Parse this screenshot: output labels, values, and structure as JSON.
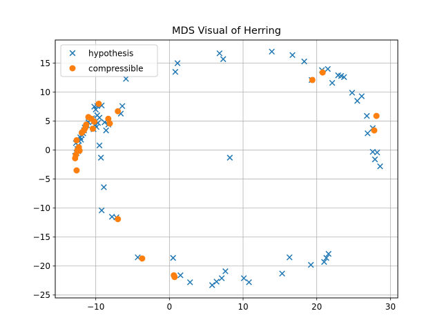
{
  "chart_data": {
    "type": "scatter",
    "title": "MDS Visual of Herring",
    "xlabel": "",
    "ylabel": "",
    "xlim": [
      -15.5,
      31
    ],
    "ylim": [
      -25.5,
      19
    ],
    "xticks": [
      -10,
      0,
      10,
      20,
      30
    ],
    "yticks": [
      -25,
      -20,
      -15,
      -10,
      -5,
      0,
      5,
      10,
      15
    ],
    "grid": true,
    "legend_position": "top-left",
    "series": [
      {
        "name": "hypothesis",
        "marker": "x",
        "color": "#1f77b4",
        "points": [
          [
            -12.8,
            -1.0
          ],
          [
            -12.6,
            -0.5
          ],
          [
            -12.5,
            0.2
          ],
          [
            -12.4,
            0.8
          ],
          [
            -12.7,
            1.2
          ],
          [
            -12.3,
            1.6
          ],
          [
            -12.1,
            2.2
          ],
          [
            -11.9,
            2.6
          ],
          [
            -11.8,
            3.0
          ],
          [
            -11.6,
            3.4
          ],
          [
            -11.5,
            3.9
          ],
          [
            -11.2,
            4.3
          ],
          [
            -11.0,
            4.8
          ],
          [
            -10.8,
            5.2
          ],
          [
            -10.5,
            5.5
          ],
          [
            -10.3,
            5.0
          ],
          [
            -10.1,
            4.4
          ],
          [
            -9.9,
            4.0
          ],
          [
            -10.3,
            3.6
          ],
          [
            -9.7,
            4.7
          ],
          [
            -9.5,
            5.6
          ],
          [
            -9.8,
            6.0
          ],
          [
            -10.0,
            7.0
          ],
          [
            -10.2,
            7.5
          ],
          [
            -9.8,
            7.6
          ],
          [
            -9.2,
            7.7
          ],
          [
            -8.8,
            4.8
          ],
          [
            -8.6,
            3.4
          ],
          [
            -8.3,
            4.4
          ],
          [
            -12.4,
            -0.2
          ],
          [
            -12.0,
            1.8
          ],
          [
            -11.7,
            2.9
          ],
          [
            -9.5,
            0.8
          ],
          [
            -9.3,
            -1.3
          ],
          [
            -8.9,
            -6.4
          ],
          [
            -9.2,
            -10.4
          ],
          [
            -7.8,
            -11.5
          ],
          [
            -7.2,
            -11.6
          ],
          [
            -6.6,
            6.3
          ],
          [
            -6.4,
            7.6
          ],
          [
            -5.9,
            12.3
          ],
          [
            -4.3,
            -18.5
          ],
          [
            0.5,
            -18.6
          ],
          [
            0.8,
            13.5
          ],
          [
            1.1,
            15.0
          ],
          [
            1.5,
            -21.6
          ],
          [
            2.8,
            -22.8
          ],
          [
            5.8,
            -23.3
          ],
          [
            6.4,
            -22.7
          ],
          [
            6.8,
            16.7
          ],
          [
            7.1,
            -22.1
          ],
          [
            7.3,
            15.7
          ],
          [
            7.6,
            -20.9
          ],
          [
            8.2,
            -1.3
          ],
          [
            10.1,
            -22.1
          ],
          [
            10.8,
            -22.8
          ],
          [
            13.9,
            17.0
          ],
          [
            15.3,
            -21.3
          ],
          [
            16.3,
            -18.5
          ],
          [
            16.7,
            16.4
          ],
          [
            18.3,
            15.3
          ],
          [
            19.2,
            -19.8
          ],
          [
            19.3,
            12.1
          ],
          [
            20.7,
            13.8
          ],
          [
            21.0,
            -19.3
          ],
          [
            21.3,
            -18.6
          ],
          [
            21.6,
            -17.9
          ],
          [
            21.5,
            14.0
          ],
          [
            22.1,
            11.6
          ],
          [
            22.9,
            12.9
          ],
          [
            23.3,
            12.8
          ],
          [
            23.7,
            12.6
          ],
          [
            24.8,
            9.9
          ],
          [
            25.5,
            8.5
          ],
          [
            26.1,
            9.3
          ],
          [
            26.8,
            5.9
          ],
          [
            26.9,
            2.9
          ],
          [
            27.6,
            3.8
          ],
          [
            27.6,
            -0.3
          ],
          [
            27.9,
            -1.6
          ],
          [
            28.2,
            -0.4
          ],
          [
            28.6,
            -2.8
          ]
        ]
      },
      {
        "name": "compressible",
        "marker": "o",
        "color": "#ff7f0e",
        "points": [
          [
            -12.8,
            -1.4
          ],
          [
            -12.7,
            -0.8
          ],
          [
            -12.5,
            0.0
          ],
          [
            -12.6,
            1.7
          ],
          [
            -12.3,
            0.5
          ],
          [
            -12.6,
            -3.5
          ],
          [
            -12.2,
            -0.1
          ],
          [
            -11.9,
            3.0
          ],
          [
            -11.6,
            3.4
          ],
          [
            -11.4,
            3.9
          ],
          [
            -11.3,
            4.4
          ],
          [
            -11.0,
            5.7
          ],
          [
            -10.6,
            5.4
          ],
          [
            -10.4,
            3.7
          ],
          [
            -10.2,
            4.9
          ],
          [
            -9.6,
            8.0
          ],
          [
            -8.3,
            5.4
          ],
          [
            -8.1,
            4.6
          ],
          [
            -7.0,
            6.7
          ],
          [
            -7.0,
            -11.9
          ],
          [
            -3.7,
            -18.7
          ],
          [
            0.6,
            -21.6
          ],
          [
            0.7,
            -21.9
          ],
          [
            19.4,
            12.1
          ],
          [
            20.8,
            13.4
          ],
          [
            27.8,
            3.4
          ],
          [
            28.1,
            5.9
          ]
        ]
      }
    ]
  }
}
